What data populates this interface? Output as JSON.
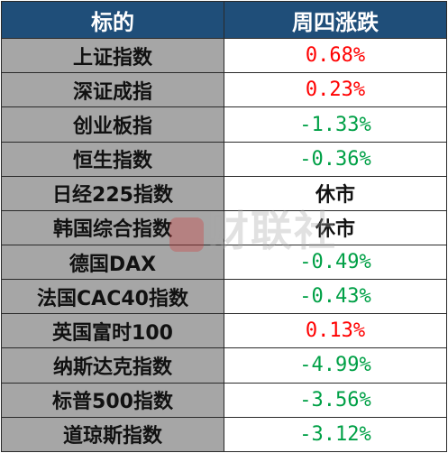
{
  "header": {
    "col1": "标的",
    "col2": "周四涨跌"
  },
  "rows": [
    {
      "name": "上证指数",
      "change": "0.68%",
      "dir": "up"
    },
    {
      "name": "深证成指",
      "change": "0.23%",
      "dir": "up"
    },
    {
      "name": "创业板指",
      "change": "-1.33%",
      "dir": "down"
    },
    {
      "name": "恒生指数",
      "change": "-0.36%",
      "dir": "down"
    },
    {
      "name": "日经225指数",
      "change": "休市",
      "dir": "flat"
    },
    {
      "name": "韩国综合指数",
      "change": "休市",
      "dir": "flat"
    },
    {
      "name": "德国DAX",
      "change": "-0.49%",
      "dir": "down"
    },
    {
      "name": "法国CAC40指数",
      "change": "-0.43%",
      "dir": "down"
    },
    {
      "name": "英国富时100",
      "change": "0.13%",
      "dir": "up"
    },
    {
      "name": "纳斯达克指数",
      "change": "-4.99%",
      "dir": "down"
    },
    {
      "name": "标普500指数",
      "change": "-3.56%",
      "dir": "down"
    },
    {
      "name": "道琼斯指数",
      "change": "-3.12%",
      "dir": "down"
    }
  ],
  "watermark": {
    "text": "财联社"
  },
  "colors": {
    "header_bg": "#1f4e79",
    "name_bg": "#a6a6a6",
    "up": "#ff0000",
    "down": "#00a046"
  }
}
